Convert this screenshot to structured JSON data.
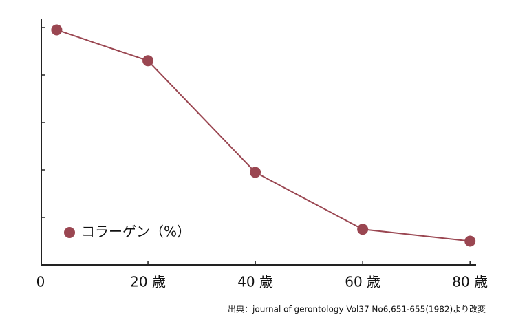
{
  "chart_data": {
    "type": "line",
    "x": [
      3,
      20,
      40,
      60,
      80
    ],
    "series": [
      {
        "name": "コラーゲン（%）",
        "color": "#9a4651",
        "values": [
          4.95,
          4.3,
          1.95,
          0.75,
          0.5
        ]
      }
    ],
    "xlim": [
      0,
      81
    ],
    "xticks": [
      0,
      {
        "value": 20,
        "label": "20 歳"
      },
      {
        "value": 40,
        "label": "40 歳"
      },
      {
        "value": 60,
        "label": "60 歳"
      },
      {
        "value": 80,
        "label": "80 歳"
      }
    ],
    "ylim": [
      0,
      5
    ],
    "yticks": [
      1,
      2,
      3,
      4,
      5
    ],
    "legend": "lower-left",
    "source": "出典：journal of gerontology Vol37 No6,651-655(1982)より改変"
  }
}
